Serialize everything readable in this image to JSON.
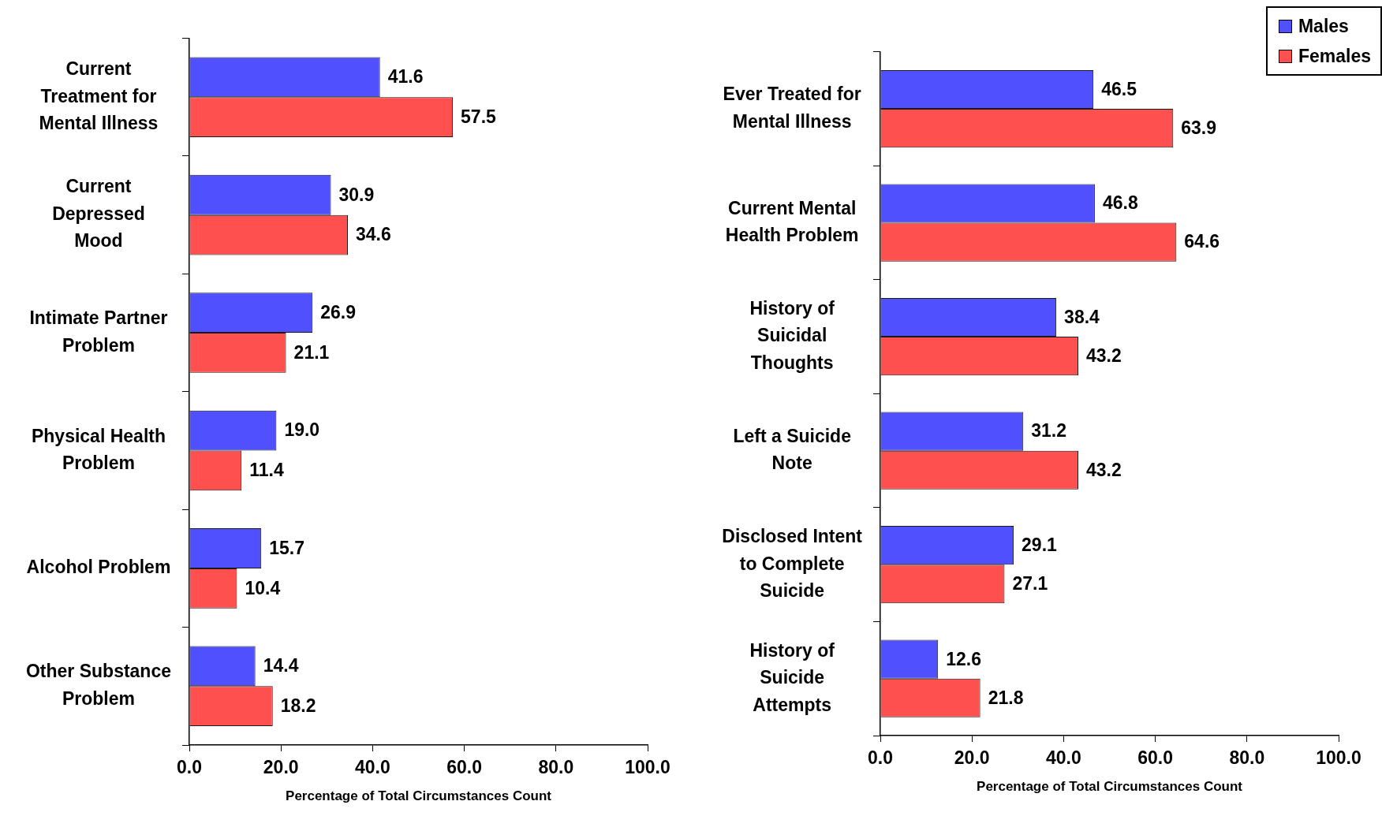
{
  "chart_data": [
    {
      "type": "bar",
      "orientation": "horizontal",
      "categories": [
        "Current Treatment for Mental Illness",
        "Current Depressed Mood",
        "Intimate Partner Problem",
        "Physical Health Problem",
        "Alcohol Problem",
        "Other Substance Problem"
      ],
      "series": [
        {
          "color": "#5050ff",
          "values": [
            41.6,
            30.9,
            26.9,
            19.0,
            15.7,
            14.4
          ],
          "value_labels": [
            "41.6",
            "30.9",
            "26.9",
            "19.0",
            "15.7",
            "14.4"
          ]
        },
        {
          "color": "#ff5050",
          "values": [
            57.5,
            34.6,
            21.1,
            11.4,
            10.4,
            18.2
          ],
          "value_labels": [
            "57.5",
            "34.6",
            "21.1",
            "11.4",
            "10.4",
            "18.2"
          ]
        }
      ],
      "xlabel": "Percentage of Total Circumstances Count",
      "xlim": [
        0,
        100
      ],
      "xticks": [
        {
          "value": 0,
          "label": "0.0"
        },
        {
          "value": 20,
          "label": "20.0"
        },
        {
          "value": 40,
          "label": "40.0"
        },
        {
          "value": 60,
          "label": "60.0"
        },
        {
          "value": 80,
          "label": "80.0"
        },
        {
          "value": 100,
          "label": "100.0"
        }
      ]
    },
    {
      "type": "bar",
      "orientation": "horizontal",
      "categories": [
        "Ever Treated for Mental Illness",
        "Current Mental Health Problem",
        "History of Suicidal Thoughts",
        "Left a Suicide Note",
        "Disclosed Intent to Complete Suicide",
        "History of Suicide Attempts"
      ],
      "series": [
        {
          "name": "Males",
          "color": "#5050ff",
          "values": [
            46.5,
            46.8,
            38.4,
            31.2,
            29.1,
            12.6
          ],
          "value_labels": [
            "46.5",
            "46.8",
            "38.4",
            "31.2",
            "29.1",
            "12.6"
          ]
        },
        {
          "name": "Females",
          "color": "#ff5050",
          "values": [
            63.9,
            64.6,
            43.2,
            43.2,
            27.1,
            21.8
          ],
          "value_labels": [
            "63.9",
            "64.6",
            "43.2",
            "43.2",
            "27.1",
            "21.8"
          ]
        }
      ],
      "xlabel": "Percentage of Total Circumstances Count",
      "xlim": [
        0,
        100
      ],
      "xticks": [
        {
          "value": 0,
          "label": "0.0"
        },
        {
          "value": 20,
          "label": "20.0"
        },
        {
          "value": 40,
          "label": "40.0"
        },
        {
          "value": 60,
          "label": "60.0"
        },
        {
          "value": 80,
          "label": "80.0"
        },
        {
          "value": 100,
          "label": "100.0"
        }
      ],
      "legend": "top right"
    }
  ]
}
